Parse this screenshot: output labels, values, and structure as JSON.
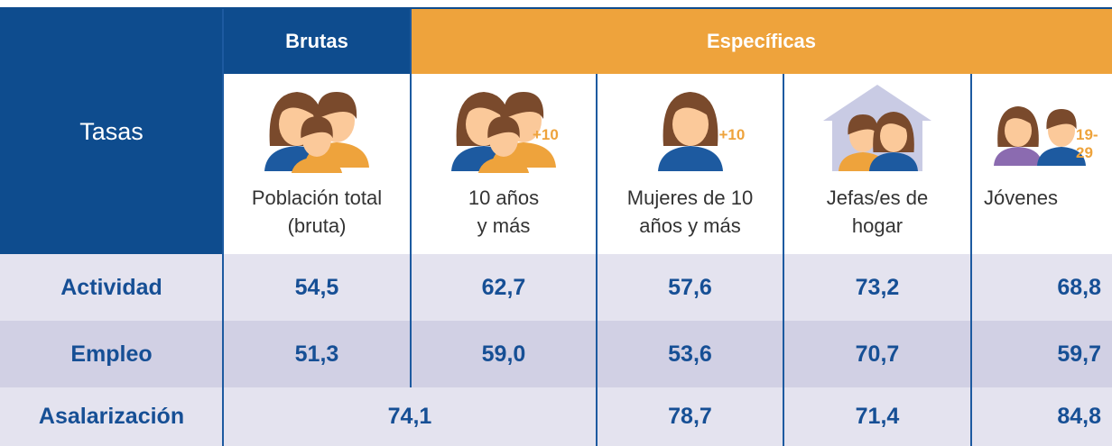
{
  "table": {
    "corner": "Tasas",
    "groups": [
      "Brutas",
      "Específicas"
    ],
    "columns": [
      {
        "lines": [
          "Población total",
          "(bruta)"
        ]
      },
      {
        "lines": [
          "10 años",
          "y más"
        ],
        "badge": "+10"
      },
      {
        "lines": [
          "Mujeres de 10",
          "años y más"
        ],
        "badge": "+10"
      },
      {
        "lines": [
          "Jefas/es de",
          "hogar"
        ]
      },
      {
        "lines": [
          "Jóvenes"
        ],
        "badge": "19-29"
      }
    ],
    "rows": [
      {
        "label": "Actividad",
        "values": [
          "54,5",
          "62,7",
          "57,6",
          "73,2",
          "68,8"
        ]
      },
      {
        "label": "Empleo",
        "values": [
          "51,3",
          "59,0",
          "53,6",
          "70,7",
          "59,7"
        ]
      },
      {
        "label": "Asalarización",
        "values": [
          "74,1",
          "78,7",
          "71,4",
          "84,8"
        ]
      }
    ]
  }
}
